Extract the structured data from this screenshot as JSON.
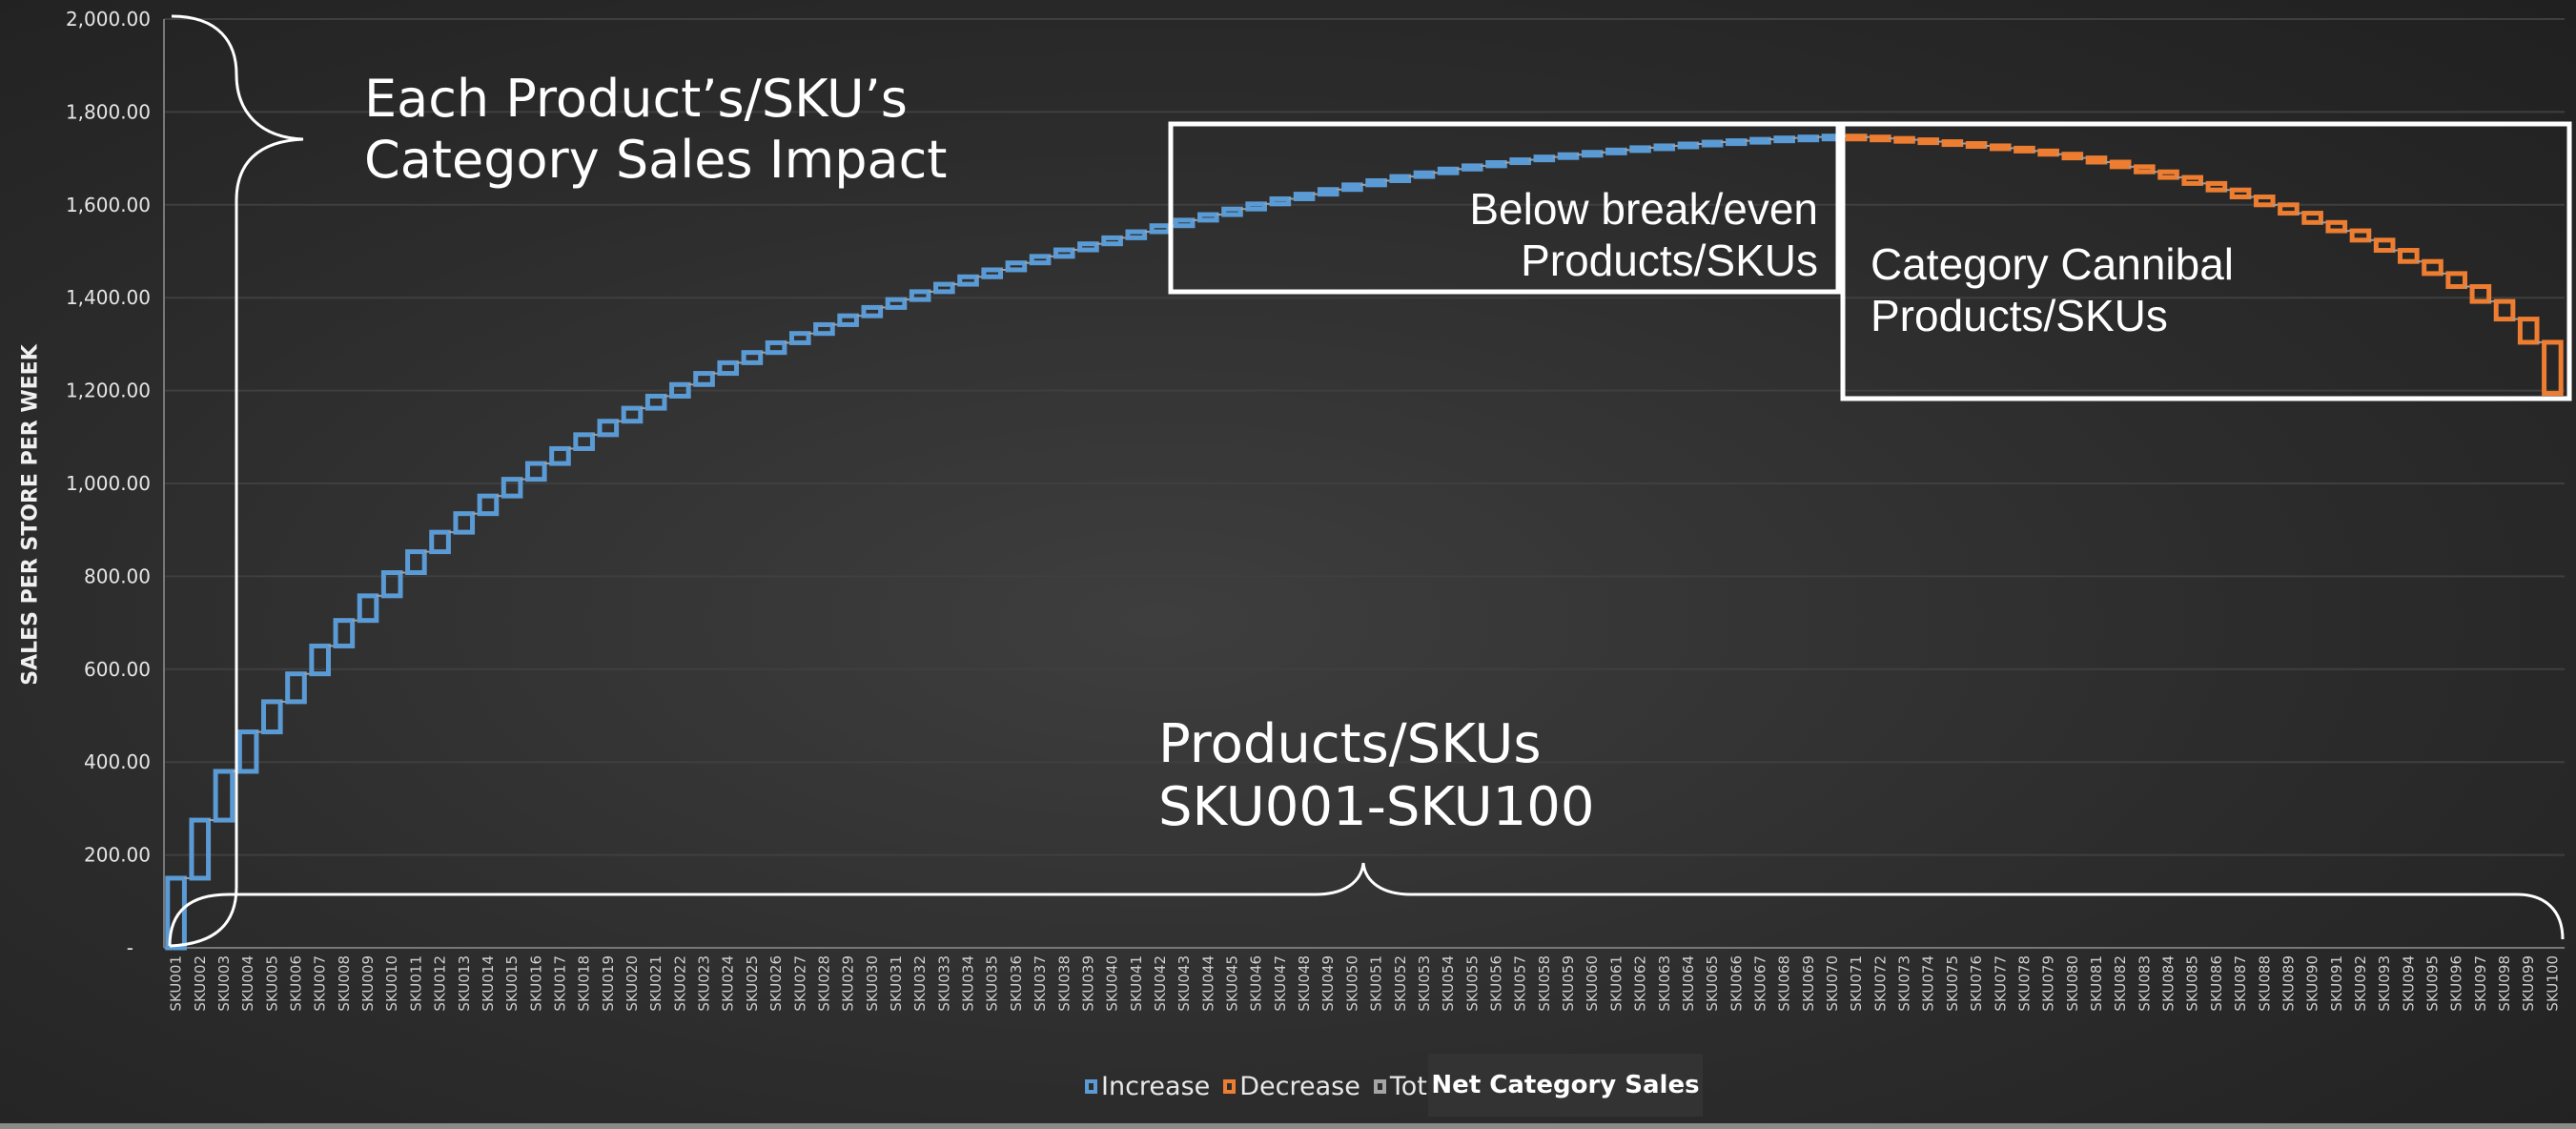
{
  "chart_data": {
    "type": "waterfall",
    "ylabel": "SALES PER STORE PER  WEEK",
    "ylim": [
      0,
      2000
    ],
    "yticks": [
      "-",
      "200.00",
      "400.00",
      "600.00",
      "800.00",
      "1,000.00",
      "1,200.00",
      "1,400.00",
      "1,600.00",
      "1,800.00",
      "2,000.00"
    ],
    "grid": true,
    "legend_position": "bottom",
    "legend": [
      "Increase",
      "Decrease",
      "Total"
    ],
    "colors": {
      "increase": "#5b9bd5",
      "decrease": "#ed7d31",
      "total": "#a5a5a5",
      "connector": "#a0a0a0"
    },
    "categories_prefix": "SKU",
    "values": [
      150,
      125,
      105,
      85,
      65,
      60,
      60,
      55,
      53,
      50,
      45,
      42,
      40,
      38,
      36,
      34,
      32,
      30,
      29,
      28,
      26,
      25,
      24,
      23,
      22,
      21,
      20,
      19,
      19,
      18,
      17,
      17,
      16,
      16,
      15,
      15,
      14,
      14,
      13,
      13,
      13,
      13,
      12,
      12,
      12,
      11,
      11,
      10,
      10,
      10,
      9,
      9,
      8,
      8,
      7,
      7,
      6,
      6,
      5,
      5,
      5,
      5,
      4,
      4,
      4,
      3,
      3,
      3,
      2,
      2,
      -2,
      -3,
      -3,
      -4,
      -4,
      -5,
      -5,
      -6,
      -7,
      -8,
      -9,
      -10,
      -11,
      -12,
      -13,
      -14,
      -15,
      -17,
      -18,
      -20,
      -18,
      -20,
      -22,
      -24,
      -26,
      -28,
      -32,
      -38,
      -50,
      -110
    ]
  },
  "annotations": {
    "brace_left_text": [
      "Each Product’s/SKU’s",
      "Category Sales Impact"
    ],
    "box_breakeven_text": [
      "Below break/even",
      "Products/SKUs"
    ],
    "box_cannibal_text": [
      "Category Cannibal",
      "Products/SKUs"
    ],
    "brace_bottom_text": [
      "Products/SKUs",
      "SKU001-SKU100"
    ]
  },
  "tooltip": "Net Category Sales"
}
